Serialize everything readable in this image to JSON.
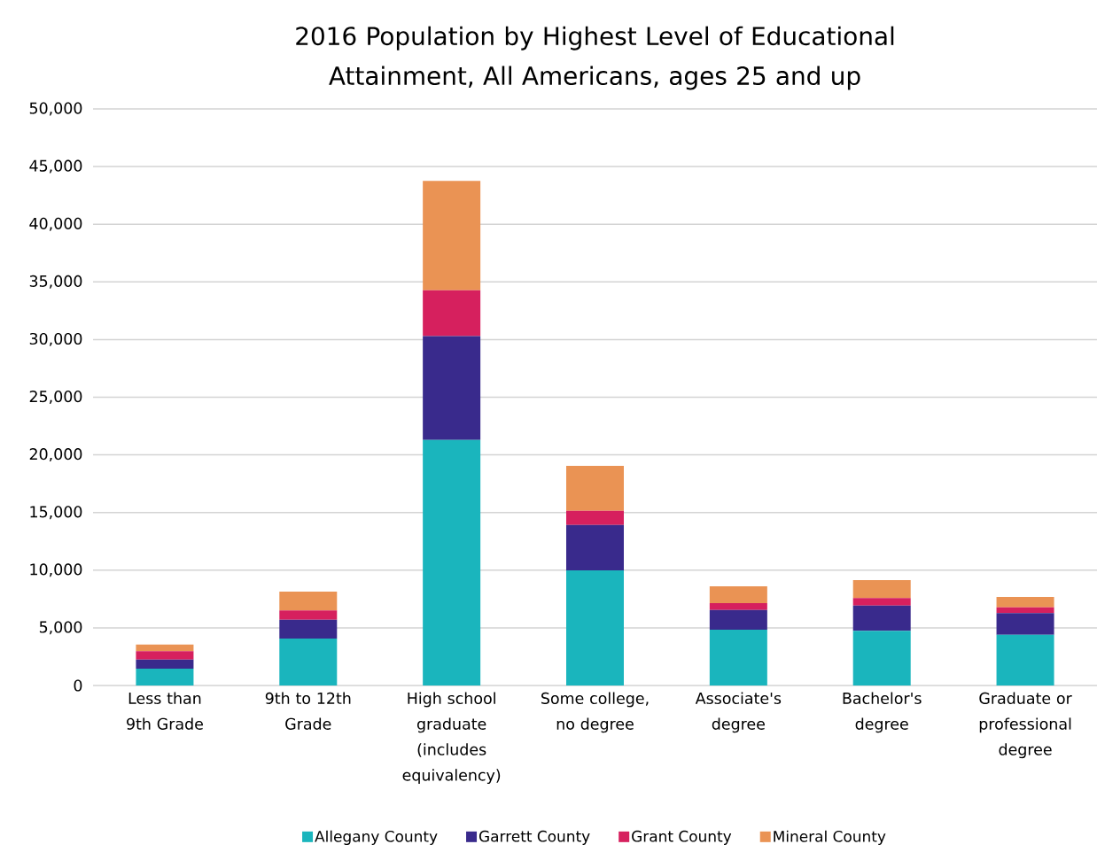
{
  "chart_data": {
    "type": "bar",
    "title": "2016 Population by Highest Level of Educational Attainment, All Americans, ages 25 and up",
    "categories": [
      "Less than 9th Grade",
      "9th to 12th Grade",
      "High school graduate (includes equivalency)",
      "Some college, no degree",
      "Associate's degree",
      "Bachelor's degree",
      "Graduate or professional degree"
    ],
    "stacked": true,
    "series": [
      {
        "name": "Allegany County",
        "color": "#1ab5bd",
        "values": [
          1460,
          4070,
          21300,
          9980,
          4840,
          4740,
          4400
        ]
      },
      {
        "name": "Garrett County",
        "color": "#392a8c",
        "values": [
          790,
          1640,
          9000,
          3940,
          1710,
          2200,
          1870
        ]
      },
      {
        "name": "Grant County",
        "color": "#d6205e",
        "values": [
          720,
          790,
          3980,
          1230,
          590,
          640,
          510
        ]
      },
      {
        "name": "Mineral County",
        "color": "#ea9354",
        "values": [
          590,
          1640,
          9470,
          3900,
          1460,
          1560,
          900
        ]
      }
    ],
    "ylim": [
      0,
      50000
    ],
    "yticks": [
      {
        "value": 0,
        "label": "0"
      },
      {
        "value": 5000,
        "label": "5,000"
      },
      {
        "value": 10000,
        "label": "10,000"
      },
      {
        "value": 15000,
        "label": "15,000"
      },
      {
        "value": 20000,
        "label": "20,000"
      },
      {
        "value": 25000,
        "label": "25,000"
      },
      {
        "value": 30000,
        "label": "30,000"
      },
      {
        "value": 35000,
        "label": "35,000"
      },
      {
        "value": 40000,
        "label": "40,000"
      },
      {
        "value": 45000,
        "label": "45,000"
      },
      {
        "value": 50000,
        "label": "50,000"
      }
    ],
    "grid": "y",
    "legend": "bottom"
  }
}
